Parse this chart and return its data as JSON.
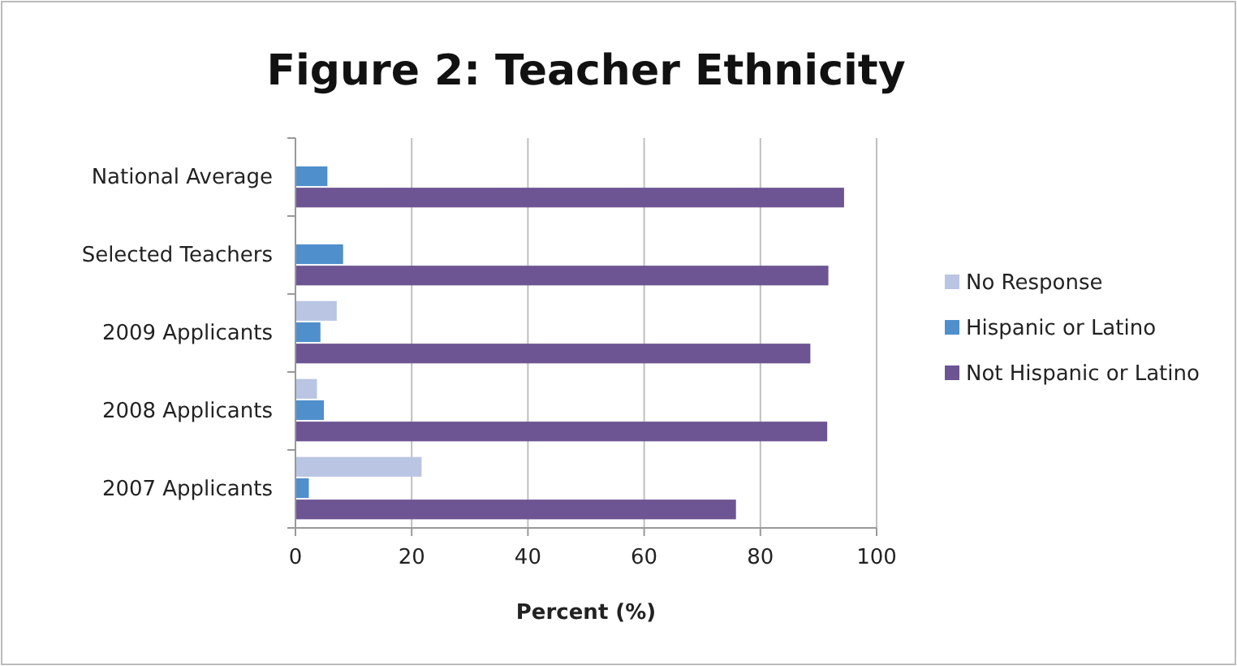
{
  "chart_data": {
    "type": "bar",
    "orientation": "horizontal",
    "title": "Figure 2: Teacher Ethnicity",
    "xlabel": "Percent (%)",
    "categories": [
      "National Average",
      "Selected Teachers",
      "2009 Applicants",
      "2008 Applicants",
      "2007 Applicants"
    ],
    "series": [
      {
        "name": "No Response",
        "color": "#b9c5e2",
        "values": [
          null,
          null,
          7.1,
          3.7,
          21.7
        ]
      },
      {
        "name": "Hispanic or Latino",
        "color": "#4f8fcc",
        "values": [
          5.5,
          8.2,
          4.3,
          4.9,
          2.3
        ]
      },
      {
        "name": "Not Hispanic or Latino",
        "color": "#6d5593",
        "values": [
          94.4,
          91.7,
          88.6,
          91.5,
          75.8
        ]
      }
    ],
    "xlim": [
      0,
      100
    ],
    "xticks": [
      0,
      20,
      40,
      60,
      80,
      100
    ],
    "grid": "x",
    "legend": "right"
  }
}
